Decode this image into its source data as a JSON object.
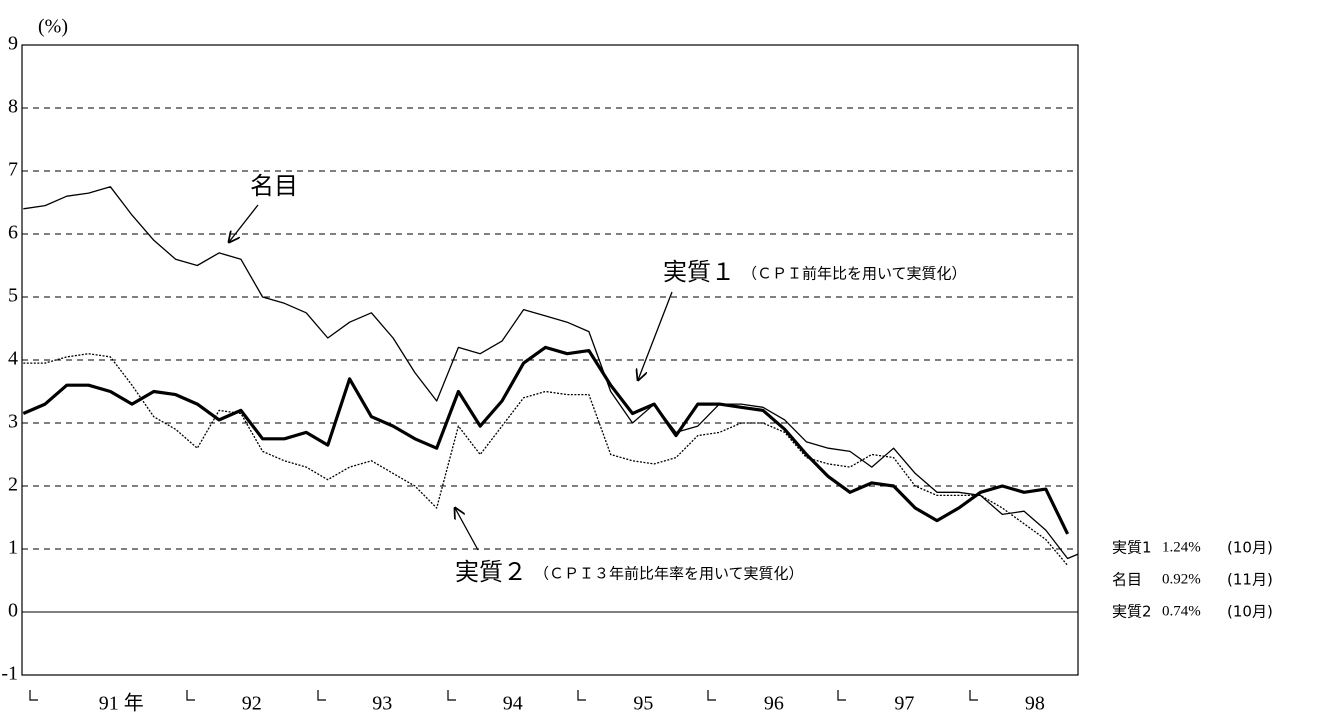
{
  "chart_data": {
    "type": "line",
    "y_unit": "(%)",
    "x": [
      1990.75,
      1990.917,
      1991.083,
      1991.25,
      1991.417,
      1991.583,
      1991.75,
      1991.917,
      1992.083,
      1992.25,
      1992.417,
      1992.583,
      1992.75,
      1992.917,
      1993.083,
      1993.25,
      1993.417,
      1993.583,
      1993.75,
      1993.917,
      1994.083,
      1994.25,
      1994.417,
      1994.583,
      1994.75,
      1994.917,
      1995.083,
      1995.25,
      1995.417,
      1995.583,
      1995.75,
      1995.917,
      1996.083,
      1996.25,
      1996.417,
      1996.583,
      1996.75,
      1996.917,
      1997.083,
      1997.25,
      1997.417,
      1997.583,
      1997.75,
      1997.917,
      1998.083,
      1998.25,
      1998.417,
      1998.583,
      1998.75,
      1998.833
    ],
    "series": [
      {
        "name": "実質1",
        "color": "#000000",
        "end_label": "1.24%",
        "end_note": "(10月)",
        "values": [
          3.15,
          3.3,
          3.6,
          3.6,
          3.5,
          3.3,
          3.5,
          3.45,
          3.3,
          3.05,
          3.2,
          2.75,
          2.75,
          2.85,
          2.65,
          3.7,
          3.1,
          2.95,
          2.75,
          2.6,
          3.5,
          2.95,
          3.35,
          3.95,
          4.2,
          4.1,
          4.15,
          3.6,
          3.15,
          3.3,
          2.8,
          3.3,
          3.3,
          3.25,
          3.2,
          2.9,
          2.5,
          2.15,
          1.9,
          2.05,
          2.0,
          1.65,
          1.45,
          1.65,
          1.9,
          2.0,
          1.9,
          1.95,
          1.24,
          null
        ]
      },
      {
        "name": "名目",
        "color": "#000000",
        "end_label": "0.92%",
        "end_note": "(11月)",
        "values": [
          6.4,
          6.45,
          6.6,
          6.65,
          6.75,
          6.3,
          5.9,
          5.6,
          5.5,
          5.7,
          5.6,
          5.0,
          4.9,
          4.75,
          4.35,
          4.6,
          4.75,
          4.35,
          3.8,
          3.35,
          4.2,
          4.1,
          4.3,
          4.8,
          4.7,
          4.6,
          4.45,
          3.5,
          3.0,
          3.3,
          2.85,
          2.95,
          3.3,
          3.3,
          3.25,
          3.05,
          2.7,
          2.6,
          2.55,
          2.3,
          2.6,
          2.2,
          1.9,
          1.9,
          1.85,
          1.55,
          1.6,
          1.3,
          0.85,
          0.92
        ]
      },
      {
        "name": "実質2",
        "color": "#000000",
        "end_label": "0.74%",
        "end_note": "(10月)",
        "values": [
          3.95,
          3.95,
          4.05,
          4.1,
          4.05,
          3.6,
          3.1,
          2.9,
          2.6,
          3.2,
          3.15,
          2.55,
          2.4,
          2.3,
          2.1,
          2.3,
          2.4,
          2.2,
          2.0,
          1.65,
          2.95,
          2.5,
          2.95,
          3.4,
          3.5,
          3.45,
          3.45,
          2.5,
          2.4,
          2.35,
          2.45,
          2.8,
          2.85,
          3.0,
          3.0,
          2.85,
          2.45,
          2.35,
          2.3,
          2.5,
          2.45,
          2.0,
          1.85,
          1.85,
          1.85,
          1.65,
          1.4,
          1.15,
          0.74,
          null
        ]
      }
    ],
    "annotations": [
      {
        "label": "名目"
      },
      {
        "label": "実質１",
        "note": "（ＣＰＩ前年比を用いて実質化）"
      },
      {
        "label": "実質２",
        "note": "（ＣＰＩ３年前比年率を用いて実質化）"
      }
    ],
    "xlim": [
      1990.74,
      1998.83
    ],
    "xticks": [
      {
        "value": 1991.5,
        "label": "91 年"
      },
      {
        "value": 1992.5,
        "label": "92"
      },
      {
        "value": 1993.5,
        "label": "93"
      },
      {
        "value": 1994.5,
        "label": "94"
      },
      {
        "value": 1995.5,
        "label": "95"
      },
      {
        "value": 1996.5,
        "label": "96"
      },
      {
        "value": 1997.5,
        "label": "97"
      },
      {
        "value": 1998.5,
        "label": "98"
      }
    ],
    "ylim": [
      -1,
      9
    ],
    "yticks": [
      -1,
      0,
      1,
      2,
      3,
      4,
      5,
      6,
      7,
      8,
      9
    ],
    "grid": true
  }
}
